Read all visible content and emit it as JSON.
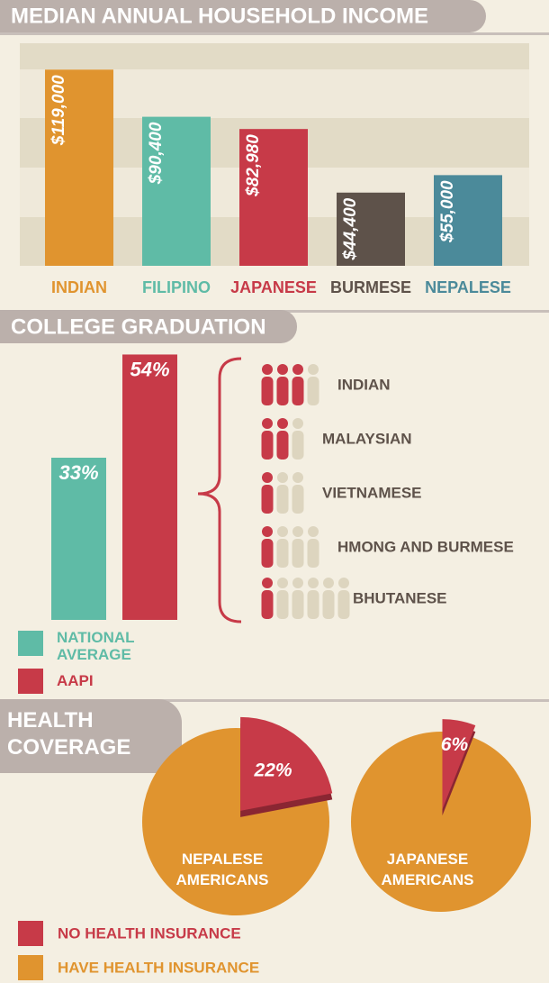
{
  "chart_data": [
    {
      "type": "bar",
      "title": "MEDIAN ANNUAL HOUSEHOLD INCOME",
      "categories": [
        "INDIAN",
        "FILIPINO",
        "JAPANESE",
        "BURMESE",
        "NEPALESE"
      ],
      "values": [
        119000,
        90400,
        82980,
        44400,
        55000
      ],
      "value_labels": [
        "$119,000",
        "$90,400",
        "$82,980",
        "$44,400",
        "$55,000"
      ],
      "colors": [
        "#e0942f",
        "#5fbba6",
        "#c73a48",
        "#5e524a",
        "#4b8a9a"
      ],
      "ylim": [
        0,
        135000
      ]
    },
    {
      "type": "bar",
      "title": "COLLEGE GRADUATION",
      "categories": [
        "NATIONAL AVERAGE",
        "AAPI"
      ],
      "values": [
        33,
        54
      ],
      "value_labels": [
        "33%",
        "54%"
      ],
      "colors": [
        "#5fbba6",
        "#c73a48"
      ],
      "ylim": [
        0,
        55
      ],
      "legend": true
    },
    {
      "type": "pictogram",
      "categories": [
        "INDIAN",
        "MALAYSIAN",
        "VIETNAMESE",
        "HMONG AND BURMESE",
        "BHUTANESE"
      ],
      "values": [
        3,
        2,
        1,
        1,
        1
      ],
      "totals": [
        4,
        3,
        3,
        4,
        6
      ],
      "colors": [
        "#c73a48",
        "#ddd5bf"
      ]
    },
    {
      "type": "pie",
      "title": "HEALTH COVERAGE",
      "categories": [
        "NEPALESE AMERICANS",
        "JAPANESE AMERICANS"
      ],
      "values": [
        22,
        6
      ],
      "value_labels": [
        "22%",
        "6%"
      ],
      "legend": [
        "NO HEALTH INSURANCE",
        "HAVE HEALTH INSURANCE"
      ],
      "colors": [
        "#c73a48",
        "#e0942f"
      ]
    }
  ]
}
